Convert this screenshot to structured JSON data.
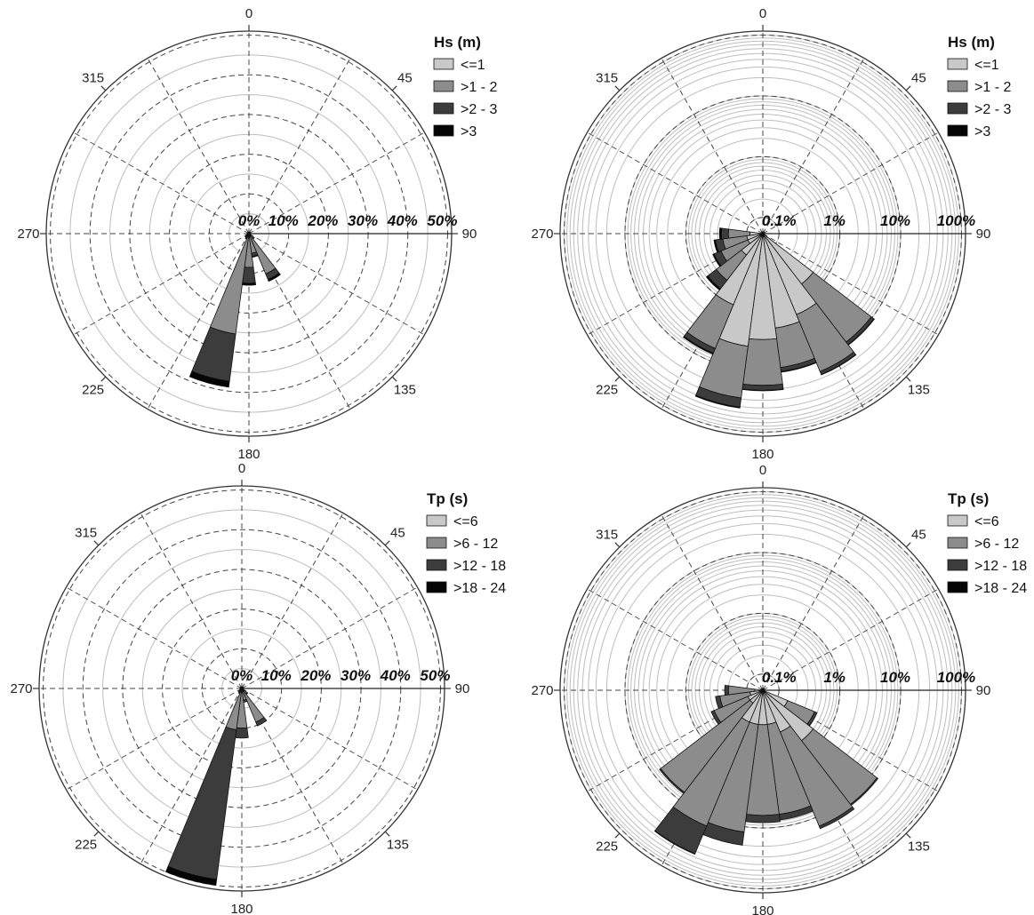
{
  "chart_data": [
    {
      "type": "polar-bar",
      "scale": "linear",
      "direction_ticks": [
        "0",
        "45",
        "90",
        "135",
        "180",
        "225",
        "270",
        "315"
      ],
      "radial_ticks": [
        "0%",
        "10%",
        "20%",
        "30%",
        "40%",
        "50%"
      ],
      "radial_max": 50,
      "legend": {
        "title": "Hs (m)",
        "placement": "top-right",
        "items": [
          {
            "label": "<=1",
            "color": "#c8c8c8"
          },
          {
            "label": ">1 - 2",
            "color": "#8c8c8c"
          },
          {
            "label": ">2 - 3",
            "color": "#3c3c3c"
          },
          {
            "label": ">3",
            "color": "#050505"
          }
        ]
      },
      "sectors": [
        {
          "dir": 180,
          "values": [
            0.5,
            8.0,
            4.0,
            0.5
          ]
        },
        {
          "dir": 195,
          "values": [
            0.5,
            25.0,
            12.0,
            1.5
          ]
        },
        {
          "dir": 165,
          "values": [
            0.5,
            4.5,
            0.8,
            0.2
          ]
        },
        {
          "dir": 150,
          "values": [
            0.5,
            10.5,
            1.5,
            0.5
          ]
        },
        {
          "dir": 135,
          "values": [
            0.2,
            1.3,
            0.2,
            0
          ]
        },
        {
          "dir": 210,
          "values": [
            0.2,
            1.0,
            0.3,
            0
          ]
        },
        {
          "dir": 225,
          "values": [
            0.2,
            0.8,
            0.2,
            0
          ]
        },
        {
          "dir": 240,
          "values": [
            0.2,
            0.5,
            0.1,
            0
          ]
        }
      ]
    },
    {
      "type": "polar-bar",
      "scale": "log",
      "direction_ticks": [
        "0",
        "45",
        "90",
        "135",
        "180",
        "225",
        "270",
        "315"
      ],
      "radial_ticks": [
        "0.1%",
        "1%",
        "10%",
        "100%"
      ],
      "radial_log_range": [
        0.1,
        100
      ],
      "legend": {
        "title": "Hs (m)",
        "placement": "top-right",
        "items": [
          {
            "label": "<=1",
            "color": "#c8c8c8"
          },
          {
            "label": ">1 - 2",
            "color": "#8c8c8c"
          },
          {
            "label": ">2 - 3",
            "color": "#3c3c3c"
          },
          {
            "label": ">3",
            "color": "#050505"
          }
        ]
      },
      "sectors": [
        {
          "dir": 135,
          "values": [
            0.6,
            9.0,
            1.3,
            0.2
          ]
        },
        {
          "dir": 150,
          "values": [
            1.5,
            14.0,
            2.0,
            0.3
          ]
        },
        {
          "dir": 165,
          "values": [
            2.0,
            7.0,
            1.5,
            0.3
          ]
        },
        {
          "dir": 180,
          "values": [
            3.0,
            14.0,
            3.5,
            0.4
          ]
        },
        {
          "dir": 195,
          "values": [
            4.0,
            25.0,
            12.0,
            1.5
          ]
        },
        {
          "dir": 210,
          "values": [
            1.0,
            5.0,
            1.3,
            0.3
          ]
        },
        {
          "dir": 225,
          "values": [
            0.15,
            0.35,
            0.25,
            0.05
          ]
        },
        {
          "dir": 240,
          "values": [
            0.1,
            0.2,
            0.1,
            0.02
          ]
        },
        {
          "dir": 255,
          "values": [
            0.1,
            0.15,
            0.08,
            0.02
          ]
        },
        {
          "dir": 270,
          "values": [
            0.08,
            0.12,
            0.06,
            0.02
          ]
        }
      ]
    },
    {
      "type": "polar-bar",
      "scale": "linear",
      "direction_ticks": [
        "0",
        "45",
        "90",
        "135",
        "180",
        "225",
        "270",
        "315"
      ],
      "radial_ticks": [
        "0%",
        "10%",
        "20%",
        "30%",
        "40%",
        "50%"
      ],
      "radial_max": 50,
      "legend": {
        "title": "Tp (s)",
        "placement": "top-right",
        "items": [
          {
            "label": "<=6",
            "color": "#c8c8c8"
          },
          {
            "label": ">6 - 12",
            "color": "#8c8c8c"
          },
          {
            "label": ">12 - 18",
            "color": "#3c3c3c"
          },
          {
            "label": ">18 - 24",
            "color": "#050505"
          }
        ]
      },
      "sectors": [
        {
          "dir": 180,
          "values": [
            0.5,
            9.5,
            2.5,
            0
          ]
        },
        {
          "dir": 195,
          "values": [
            0.5,
            10.0,
            38.0,
            1.5
          ]
        },
        {
          "dir": 165,
          "values": [
            0.2,
            2.8,
            0.5,
            0
          ]
        },
        {
          "dir": 150,
          "values": [
            0.2,
            9.0,
            1.0,
            0
          ]
        },
        {
          "dir": 135,
          "values": [
            0.2,
            1.5,
            0.2,
            0
          ]
        },
        {
          "dir": 210,
          "values": [
            0.1,
            1.0,
            0.3,
            0
          ]
        },
        {
          "dir": 225,
          "values": [
            0.1,
            0.8,
            0.2,
            0
          ]
        }
      ]
    },
    {
      "type": "polar-bar",
      "scale": "log",
      "direction_ticks": [
        "0",
        "45",
        "90",
        "135",
        "180",
        "225",
        "270",
        "315"
      ],
      "radial_ticks": [
        "0.1%",
        "1%",
        "10%",
        "100%"
      ],
      "radial_log_range": [
        0.1,
        100
      ],
      "legend": {
        "title": "Tp (s)",
        "placement": "top-right",
        "items": [
          {
            "label": "<=6",
            "color": "#c8c8c8"
          },
          {
            "label": ">6 - 12",
            "color": "#8c8c8c"
          },
          {
            "label": ">12 - 18",
            "color": "#3c3c3c"
          },
          {
            "label": ">18 - 24",
            "color": "#050505"
          }
        ]
      },
      "sectors": [
        {
          "dir": 120,
          "values": [
            0.15,
            0.3,
            0.05,
            0
          ]
        },
        {
          "dir": 135,
          "values": [
            0.6,
            12.0,
            0.6,
            0
          ]
        },
        {
          "dir": 150,
          "values": [
            0.3,
            14.0,
            1.5,
            0
          ]
        },
        {
          "dir": 165,
          "values": [
            0.2,
            6.0,
            1.5,
            0
          ]
        },
        {
          "dir": 180,
          "values": [
            0.2,
            6.0,
            2.0,
            0
          ]
        },
        {
          "dir": 195,
          "values": [
            0.2,
            12.0,
            8.0,
            0
          ]
        },
        {
          "dir": 210,
          "values": [
            0.2,
            14.0,
            30.0,
            1.0
          ]
        },
        {
          "dir": 225,
          "values": [
            0.1,
            7.0,
            0.4,
            0
          ]
        },
        {
          "dir": 240,
          "values": [
            0.1,
            0.3,
            0.05,
            0
          ]
        },
        {
          "dir": 255,
          "values": [
            0.08,
            0.2,
            0.05,
            0
          ]
        },
        {
          "dir": 270,
          "values": [
            0.05,
            0.15,
            0.03,
            0
          ]
        }
      ]
    }
  ]
}
